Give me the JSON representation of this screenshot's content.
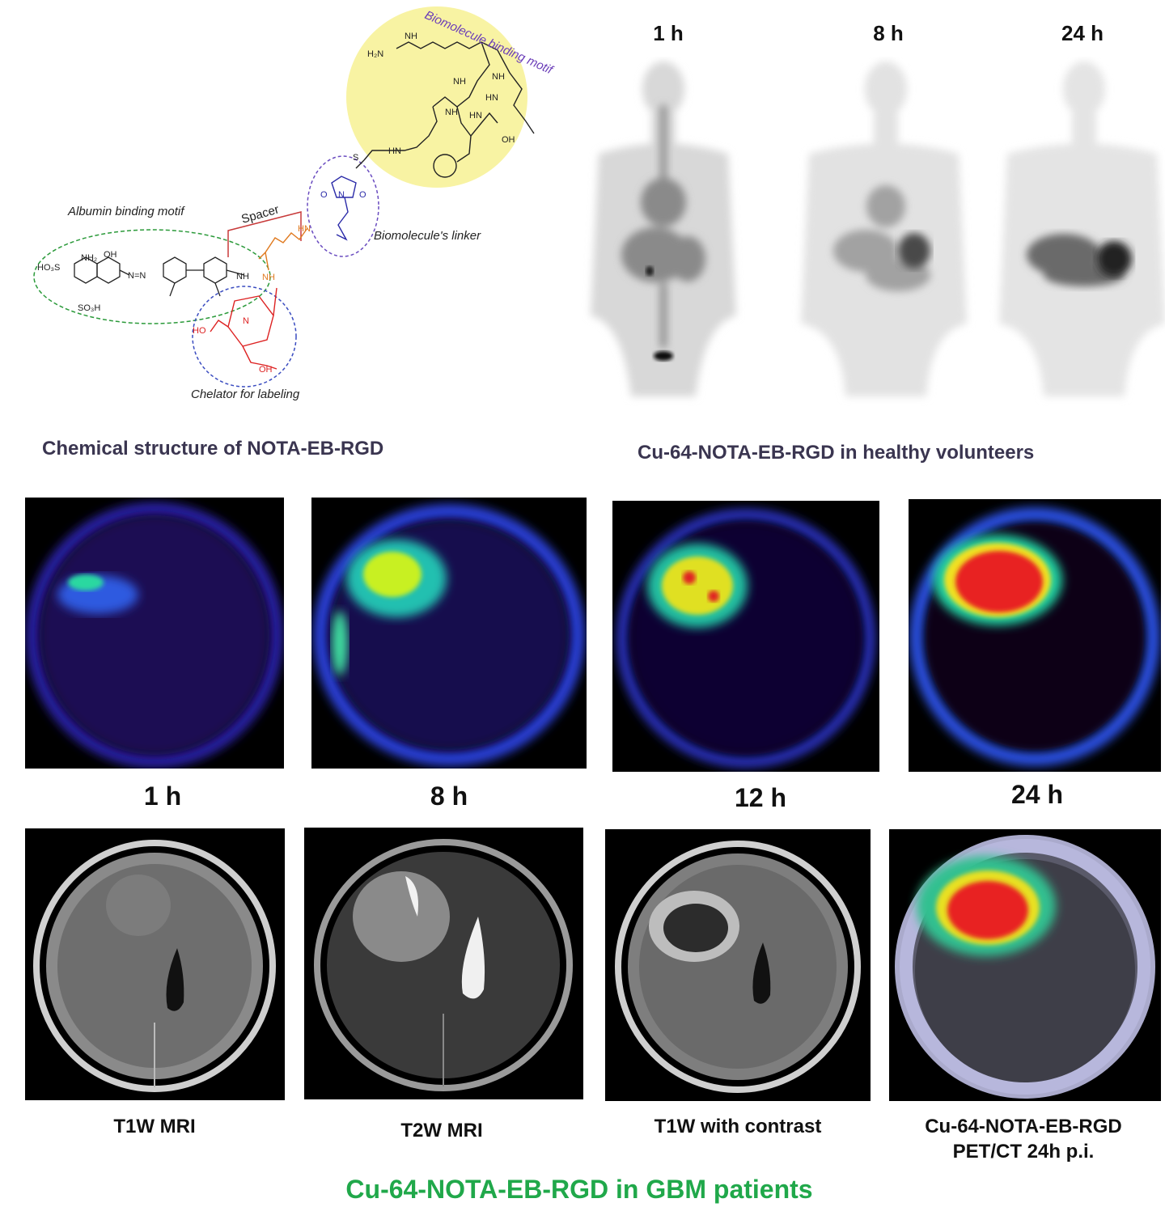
{
  "chem": {
    "motif_biomolecule": "Biomolecule binding motif",
    "motif_albumin": "Albumin binding motif",
    "spacer": "Spacer",
    "linker": "Biomolecule's linker",
    "chelator": "Chelator for labeling",
    "atom_labels": {
      "nh": "NH",
      "h2n": "H₂N",
      "hn": "HN",
      "n": "N",
      "o": "O",
      "oh": "OH",
      "ho": "HO",
      "s": "S",
      "nh2": "NH₂",
      "so3h": "SO₃H",
      "ho3s": "HO₃S",
      "azo": "N=N"
    },
    "caption": "Chemical structure of NOTA-EB-RGD"
  },
  "volunteers": {
    "times": [
      "1 h",
      "8 h",
      "24 h"
    ],
    "caption": "Cu-64-NOTA-EB-RGD in healthy volunteers"
  },
  "pet": {
    "times": [
      "1 h",
      "8 h",
      "12 h",
      "24 h"
    ]
  },
  "mri": {
    "captions": [
      "T1W MRI",
      "T2W MRI",
      "T1W with contrast"
    ],
    "petct_caption_line1": "Cu-64-NOTA-EB-RGD",
    "petct_caption_line2": "PET/CT 24h p.i."
  },
  "footer": {
    "title": "Cu-64-NOTA-EB-RGD in GBM patients",
    "color": "#20a84a"
  }
}
